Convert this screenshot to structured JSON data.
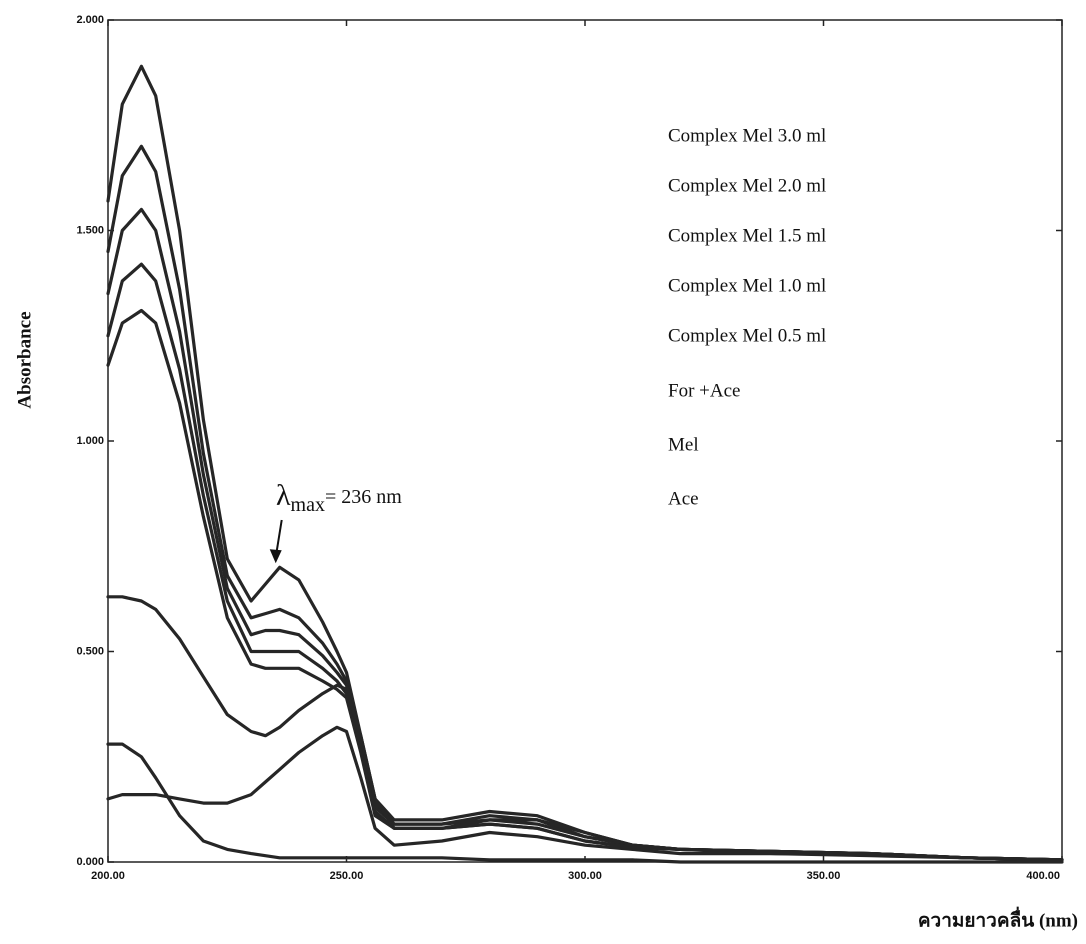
{
  "chart_data": {
    "type": "line",
    "y_label": "Absorbance",
    "x_label": "ความยาวคลื่น (nm)",
    "annotation": {
      "symbol": "λ",
      "subscript": "max",
      "text": "= 236 nm",
      "x": 236,
      "y": 0.7
    },
    "xlim": [
      200,
      400
    ],
    "ylim": [
      0,
      2
    ],
    "xticks": [
      {
        "value": 200,
        "label": "200.00"
      },
      {
        "value": 250,
        "label": "250.00"
      },
      {
        "value": 300,
        "label": "300.00"
      },
      {
        "value": 350,
        "label": "350.00"
      },
      {
        "value": 400,
        "label": "400.00"
      }
    ],
    "yticks": [
      {
        "value": 0,
        "label": "0.000"
      },
      {
        "value": 0.5,
        "label": "0.500"
      },
      {
        "value": 1,
        "label": "1.000"
      },
      {
        "value": 1.5,
        "label": "1.500"
      },
      {
        "value": 2,
        "label": "2.000"
      }
    ],
    "x": [
      200,
      203,
      207,
      210,
      215,
      220,
      225,
      230,
      233,
      236,
      240,
      245,
      248,
      250,
      253,
      256,
      260,
      270,
      280,
      290,
      300,
      310,
      320,
      340,
      360,
      380,
      400
    ],
    "series": [
      {
        "name": "Complex  Mel 3.0 ml",
        "color": "#262626",
        "values": [
          1.57,
          1.8,
          1.89,
          1.82,
          1.5,
          1.05,
          0.72,
          0.62,
          0.66,
          0.7,
          0.67,
          0.57,
          0.5,
          0.45,
          0.3,
          0.15,
          0.1,
          0.1,
          0.12,
          0.11,
          0.07,
          0.04,
          0.03,
          0.025,
          0.02,
          0.01,
          0.005
        ]
      },
      {
        "name": "Complex  Mel 2.0 ml",
        "color": "#262626",
        "values": [
          1.45,
          1.63,
          1.7,
          1.64,
          1.36,
          0.97,
          0.68,
          0.58,
          0.59,
          0.6,
          0.58,
          0.52,
          0.47,
          0.43,
          0.29,
          0.14,
          0.09,
          0.09,
          0.11,
          0.1,
          0.06,
          0.04,
          0.03,
          0.025,
          0.02,
          0.01,
          0.005
        ]
      },
      {
        "name": "Complex  Mel 1.5 ml",
        "color": "#262626",
        "values": [
          1.35,
          1.5,
          1.55,
          1.5,
          1.26,
          0.92,
          0.65,
          0.54,
          0.55,
          0.55,
          0.54,
          0.49,
          0.45,
          0.42,
          0.28,
          0.13,
          0.09,
          0.09,
          0.1,
          0.09,
          0.06,
          0.04,
          0.03,
          0.025,
          0.02,
          0.01,
          0.005
        ]
      },
      {
        "name": "Complex  Mel 1.0 ml",
        "color": "#262626",
        "values": [
          1.25,
          1.38,
          1.42,
          1.38,
          1.17,
          0.87,
          0.62,
          0.5,
          0.5,
          0.5,
          0.5,
          0.46,
          0.43,
          0.4,
          0.27,
          0.12,
          0.08,
          0.08,
          0.09,
          0.08,
          0.05,
          0.035,
          0.03,
          0.025,
          0.02,
          0.01,
          0.005
        ]
      },
      {
        "name": "Complex  Mel 0.5 ml",
        "color": "#262626",
        "values": [
          1.18,
          1.28,
          1.31,
          1.28,
          1.09,
          0.82,
          0.58,
          0.47,
          0.46,
          0.46,
          0.46,
          0.43,
          0.41,
          0.39,
          0.26,
          0.11,
          0.08,
          0.08,
          0.09,
          0.08,
          0.05,
          0.035,
          0.03,
          0.025,
          0.02,
          0.01,
          0.005
        ]
      },
      {
        "name": "For +Ace",
        "color": "#262626",
        "values": [
          0.63,
          0.63,
          0.62,
          0.6,
          0.53,
          0.44,
          0.35,
          0.31,
          0.3,
          0.32,
          0.36,
          0.4,
          0.42,
          0.41,
          0.3,
          0.15,
          0.08,
          0.08,
          0.1,
          0.1,
          0.07,
          0.04,
          0.03,
          0.02,
          0.02,
          0.01,
          0.005
        ]
      },
      {
        "name": "Mel",
        "color": "#262626",
        "values": [
          0.15,
          0.16,
          0.16,
          0.16,
          0.15,
          0.14,
          0.14,
          0.16,
          0.19,
          0.22,
          0.26,
          0.3,
          0.32,
          0.31,
          0.2,
          0.08,
          0.04,
          0.05,
          0.07,
          0.06,
          0.04,
          0.03,
          0.02,
          0.02,
          0.015,
          0.01,
          0.005
        ]
      },
      {
        "name": "Ace",
        "color": "#262626",
        "values": [
          0.28,
          0.28,
          0.25,
          0.2,
          0.11,
          0.05,
          0.03,
          0.02,
          0.015,
          0.01,
          0.01,
          0.01,
          0.01,
          0.01,
          0.01,
          0.01,
          0.01,
          0.01,
          0.005,
          0.005,
          0.005,
          0.005,
          0,
          0,
          0,
          0,
          0
        ]
      }
    ]
  }
}
